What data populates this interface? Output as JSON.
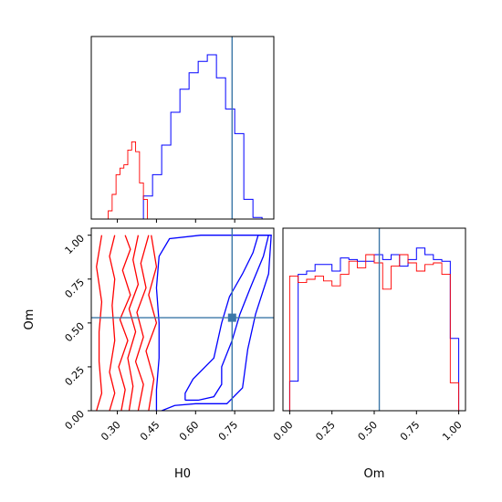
{
  "chart_data": {
    "type": "corner",
    "parameters": [
      "H0",
      "Om"
    ],
    "truth": {
      "H0": 0.74,
      "Om": 0.53
    },
    "colors": {
      "series_a": "#0000ff",
      "series_b": "#ff0000",
      "truth": "#3c78a8"
    },
    "panels": {
      "h0_hist": {
        "type": "histogram",
        "xlim": [
          0.2,
          0.9
        ],
        "x_ticks": [
          0.3,
          0.45,
          0.6,
          0.75
        ],
        "bin_edges": [
          0.265,
          0.28,
          0.295,
          0.31,
          0.325,
          0.34,
          0.355,
          0.37,
          0.385,
          0.4,
          0.415
        ],
        "series_b": [
          0.05,
          0.15,
          0.27,
          0.31,
          0.33,
          0.42,
          0.47,
          0.41,
          0.22,
          0.12
        ],
        "series_a_bin_edges": [
          0.4,
          0.435,
          0.47,
          0.505,
          0.54,
          0.575,
          0.61,
          0.645,
          0.68,
          0.715,
          0.75,
          0.785,
          0.82,
          0.855
        ],
        "series_a": [
          0.14,
          0.27,
          0.45,
          0.65,
          0.79,
          0.89,
          0.96,
          1.0,
          0.86,
          0.67,
          0.52,
          0.12,
          0.01
        ]
      },
      "om_hist": {
        "type": "histogram",
        "xlim": [
          -0.04,
          1.04
        ],
        "x_ticks": [
          "0.00",
          "0.25",
          "0.50",
          "0.75",
          "1.00"
        ],
        "bin_edges": [
          0.0,
          0.05,
          0.1,
          0.15,
          0.2,
          0.25,
          0.3,
          0.35,
          0.4,
          0.45,
          0.5,
          0.55,
          0.6,
          0.65,
          0.7,
          0.75,
          0.8,
          0.85,
          0.9,
          0.95,
          1.0
        ],
        "series_a": [
          0.18,
          0.83,
          0.85,
          0.89,
          0.89,
          0.85,
          0.93,
          0.92,
          0.91,
          0.91,
          0.95,
          0.92,
          0.95,
          0.88,
          0.92,
          0.99,
          0.95,
          0.92,
          0.91,
          0.44
        ],
        "series_b": [
          0.82,
          0.78,
          0.8,
          0.82,
          0.79,
          0.76,
          0.83,
          0.91,
          0.87,
          0.95,
          0.9,
          0.74,
          0.88,
          0.95,
          0.9,
          0.85,
          0.89,
          0.9,
          0.83,
          0.17
        ]
      },
      "joint": {
        "type": "contour",
        "xlim": [
          0.2,
          0.9
        ],
        "ylim": [
          0.0,
          1.04
        ],
        "x_ticks": [
          "0.30",
          "0.45",
          "0.60",
          "0.75"
        ],
        "y_ticks": [
          "0.00",
          "0.25",
          "0.50",
          "0.75",
          "1.00"
        ],
        "series_a_contours": [
          [
            [
              0.56,
              0.06
            ],
            [
              0.61,
              0.06
            ],
            [
              0.67,
              0.08
            ],
            [
              0.7,
              0.15
            ],
            [
              0.7,
              0.25
            ],
            [
              0.74,
              0.4
            ],
            [
              0.77,
              0.55
            ],
            [
              0.81,
              0.7
            ],
            [
              0.86,
              0.88
            ],
            [
              0.88,
              1.0
            ],
            [
              0.84,
              1.0
            ],
            [
              0.82,
              0.9
            ],
            [
              0.78,
              0.78
            ],
            [
              0.73,
              0.65
            ],
            [
              0.7,
              0.5
            ],
            [
              0.67,
              0.3
            ],
            [
              0.59,
              0.18
            ],
            [
              0.56,
              0.1
            ],
            [
              0.56,
              0.06
            ]
          ],
          [
            [
              0.47,
              0.0
            ],
            [
              0.52,
              0.03
            ],
            [
              0.6,
              0.04
            ],
            [
              0.72,
              0.04
            ],
            [
              0.78,
              0.13
            ],
            [
              0.8,
              0.35
            ],
            [
              0.83,
              0.55
            ],
            [
              0.88,
              0.78
            ],
            [
              0.89,
              1.0
            ],
            [
              0.62,
              1.0
            ],
            [
              0.5,
              0.98
            ],
            [
              0.46,
              0.88
            ],
            [
              0.45,
              0.7
            ],
            [
              0.46,
              0.5
            ],
            [
              0.46,
              0.3
            ],
            [
              0.45,
              0.12
            ],
            [
              0.45,
              0.0
            ]
          ]
        ],
        "series_b_contours": [
          [
            [
              0.22,
              0.0
            ],
            [
              0.24,
              0.1
            ],
            [
              0.23,
              0.28
            ],
            [
              0.23,
              0.45
            ],
            [
              0.24,
              0.62
            ],
            [
              0.22,
              0.82
            ],
            [
              0.24,
              1.0
            ]
          ],
          [
            [
              0.27,
              0.0
            ],
            [
              0.29,
              0.1
            ],
            [
              0.27,
              0.22
            ],
            [
              0.29,
              0.4
            ],
            [
              0.28,
              0.6
            ],
            [
              0.29,
              0.75
            ],
            [
              0.27,
              0.88
            ],
            [
              0.29,
              1.0
            ]
          ],
          [
            [
              0.315,
              0.0
            ],
            [
              0.33,
              0.12
            ],
            [
              0.305,
              0.25
            ],
            [
              0.34,
              0.4
            ],
            [
              0.31,
              0.52
            ],
            [
              0.35,
              0.66
            ],
            [
              0.32,
              0.8
            ],
            [
              0.35,
              0.92
            ],
            [
              0.33,
              1.0
            ]
          ],
          [
            [
              0.345,
              0.0
            ],
            [
              0.36,
              0.14
            ],
            [
              0.34,
              0.3
            ],
            [
              0.37,
              0.45
            ],
            [
              0.345,
              0.58
            ],
            [
              0.38,
              0.72
            ],
            [
              0.36,
              0.86
            ],
            [
              0.38,
              1.0
            ]
          ],
          [
            [
              0.38,
              0.0
            ],
            [
              0.4,
              0.15
            ],
            [
              0.37,
              0.28
            ],
            [
              0.4,
              0.42
            ],
            [
              0.375,
              0.56
            ],
            [
              0.41,
              0.7
            ],
            [
              0.39,
              0.84
            ],
            [
              0.42,
              1.0
            ]
          ],
          [
            [
              0.42,
              0.0
            ],
            [
              0.44,
              0.18
            ],
            [
              0.41,
              0.34
            ],
            [
              0.45,
              0.5
            ],
            [
              0.42,
              0.66
            ],
            [
              0.45,
              0.82
            ],
            [
              0.43,
              1.0
            ]
          ]
        ]
      }
    }
  }
}
